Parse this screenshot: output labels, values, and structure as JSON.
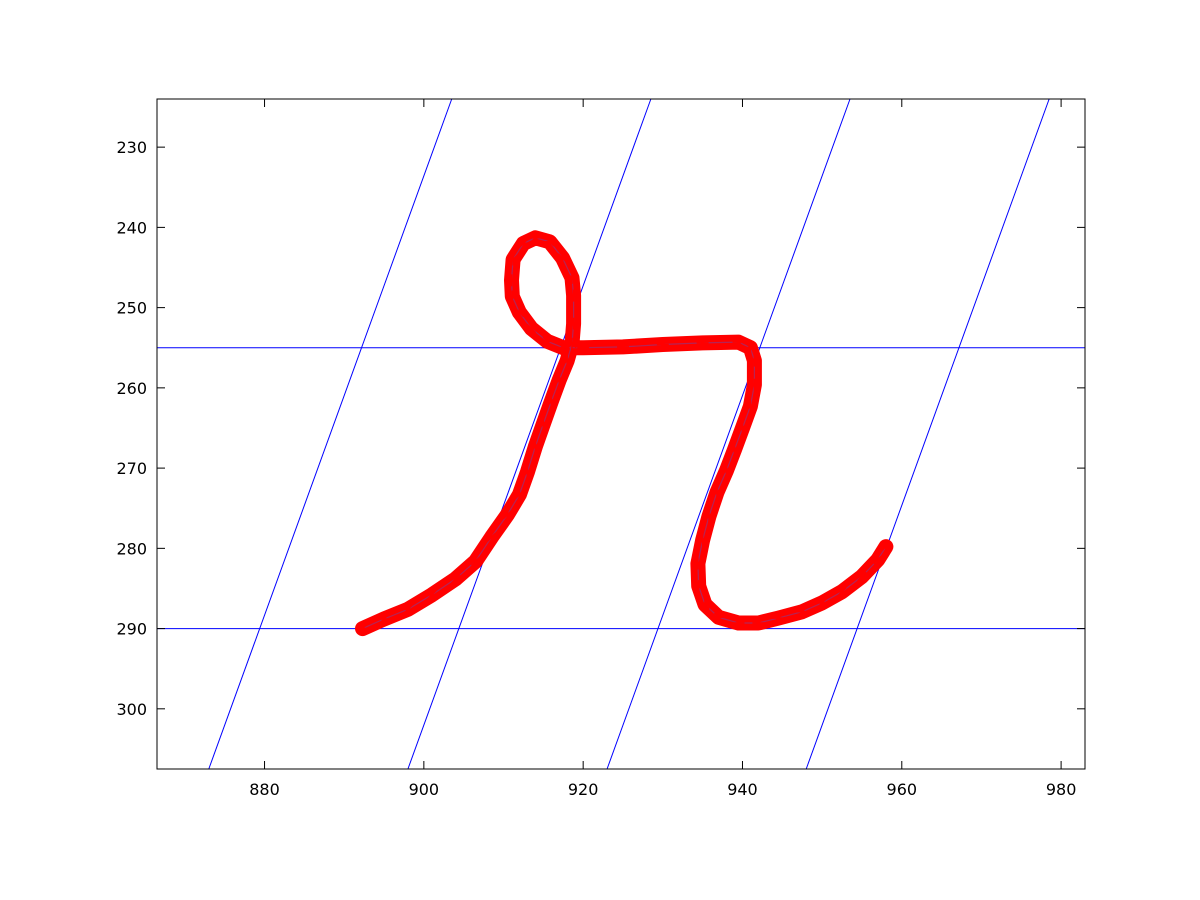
{
  "chart_data": {
    "type": "line",
    "title": "",
    "xlabel": "",
    "ylabel": "",
    "xlim": [
      866.5,
      983
    ],
    "ylim": [
      224,
      307.5
    ],
    "y_reversed": true,
    "grid": false,
    "x_ticks": [
      880,
      900,
      920,
      940,
      960,
      980
    ],
    "y_ticks": [
      230,
      240,
      250,
      260,
      270,
      280,
      290,
      300
    ],
    "x_tick_labels": [
      "880",
      "900",
      "920",
      "940",
      "960",
      "980"
    ],
    "y_tick_labels": [
      "230",
      "240",
      "250",
      "260",
      "270",
      "280",
      "290",
      "300"
    ],
    "reference_lines": {
      "color": "#0000ff",
      "horizontal": [
        255,
        290
      ],
      "slanted": [
        {
          "x_at_y_224": 903.5,
          "x_at_y_307.5": 873.0
        },
        {
          "x_at_y_224": 928.5,
          "x_at_y_307.5": 898.0
        },
        {
          "x_at_y_224": 953.5,
          "x_at_y_307.5": 923.0
        },
        {
          "x_at_y_224": 978.5,
          "x_at_y_307.5": 948.0
        }
      ]
    },
    "series": [
      {
        "color": "#ff0000",
        "marker": "asterisk",
        "points": [
          [
            892.3,
            290.0
          ],
          [
            895.0,
            288.8
          ],
          [
            898.0,
            287.6
          ],
          [
            901.0,
            285.8
          ],
          [
            904.0,
            283.8
          ],
          [
            906.5,
            281.6
          ],
          [
            908.5,
            278.6
          ],
          [
            910.5,
            275.8
          ],
          [
            912.0,
            273.3
          ],
          [
            913.0,
            270.5
          ],
          [
            914.0,
            267.3
          ],
          [
            915.0,
            264.5
          ],
          [
            916.0,
            261.7
          ],
          [
            917.0,
            259.0
          ],
          [
            918.0,
            256.6
          ],
          [
            918.6,
            254.5
          ],
          [
            918.8,
            252.0
          ],
          [
            918.8,
            248.5
          ],
          [
            918.6,
            246.3
          ],
          [
            917.4,
            243.8
          ],
          [
            915.8,
            241.8
          ],
          [
            914.0,
            241.3
          ],
          [
            912.5,
            242.0
          ],
          [
            911.2,
            244.0
          ],
          [
            911.0,
            246.6
          ],
          [
            911.1,
            248.6
          ],
          [
            912.0,
            250.6
          ],
          [
            913.5,
            252.6
          ],
          [
            915.5,
            254.2
          ],
          [
            917.5,
            255.0
          ],
          [
            920.0,
            255.0
          ],
          [
            925.0,
            254.9
          ],
          [
            930.0,
            254.6
          ],
          [
            935.0,
            254.4
          ],
          [
            939.5,
            254.3
          ],
          [
            941.0,
            255.0
          ],
          [
            941.5,
            256.6
          ],
          [
            941.5,
            259.6
          ],
          [
            941.0,
            262.3
          ],
          [
            940.0,
            265.0
          ],
          [
            939.0,
            267.7
          ],
          [
            938.0,
            270.3
          ],
          [
            936.8,
            273.0
          ],
          [
            935.8,
            276.0
          ],
          [
            935.0,
            279.0
          ],
          [
            934.4,
            281.9
          ],
          [
            934.5,
            284.7
          ],
          [
            935.3,
            287.0
          ],
          [
            937.0,
            288.6
          ],
          [
            939.5,
            289.3
          ],
          [
            942.0,
            289.3
          ],
          [
            944.5,
            288.7
          ],
          [
            947.5,
            287.9
          ],
          [
            950.0,
            286.8
          ],
          [
            952.5,
            285.4
          ],
          [
            955.0,
            283.5
          ],
          [
            957.0,
            281.4
          ],
          [
            958.0,
            279.8
          ]
        ]
      }
    ]
  }
}
